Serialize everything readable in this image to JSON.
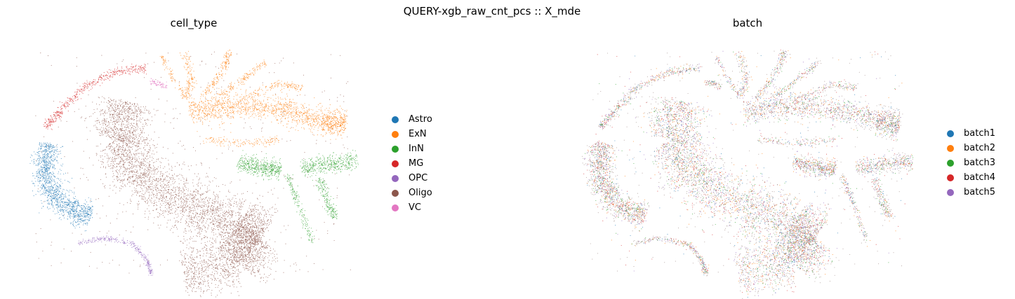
{
  "suptitle": "QUERY-xgb_raw_cnt_pcs :: X_mde",
  "chart_data": [
    {
      "type": "scatter",
      "title": "cell_type",
      "xlabel": "",
      "ylabel": "",
      "grid": false,
      "axes_visible": false,
      "legend_placement": "right",
      "series": [
        {
          "name": "Astro",
          "color": "#1f77b4"
        },
        {
          "name": "ExN",
          "color": "#ff7f0e"
        },
        {
          "name": "InN",
          "color": "#2ca02c"
        },
        {
          "name": "MG",
          "color": "#d62728"
        },
        {
          "name": "OPC",
          "color": "#9467bd"
        },
        {
          "name": "Oligo",
          "color": "#8c564b"
        },
        {
          "name": "VC",
          "color": "#e377c2"
        }
      ]
    },
    {
      "type": "scatter",
      "title": "batch",
      "xlabel": "",
      "ylabel": "",
      "grid": false,
      "axes_visible": false,
      "legend_placement": "right",
      "series": [
        {
          "name": "batch1",
          "color": "#1f77b4"
        },
        {
          "name": "batch2",
          "color": "#ff7f0e"
        },
        {
          "name": "batch3",
          "color": "#2ca02c"
        },
        {
          "name": "batch4",
          "color": "#d62728"
        },
        {
          "name": "batch5",
          "color": "#9467bd"
        }
      ]
    }
  ]
}
